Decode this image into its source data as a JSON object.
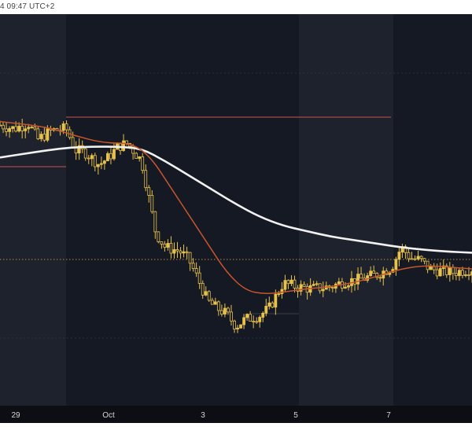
{
  "header": {
    "timestamp": "4 09:47 UTC+2"
  },
  "colors": {
    "background": "#151923",
    "band_light": "#1e222d",
    "candle_up": "#e8c24a",
    "candle_down": "#e8c24a",
    "ma_fast": "#c8552c",
    "ma_slow": "#f1f1f1",
    "level_line": "#a84848",
    "dashed_line": "#b8893a",
    "x_axis_bg": "#0c0e14",
    "x_axis_text": "#d6d6d6"
  },
  "chart_data": {
    "type": "candlestick",
    "xlabel": "",
    "ylabel": "",
    "x_ticks": [
      "29",
      "Oct",
      "3",
      "5",
      "7"
    ],
    "grid": false,
    "overlays": [
      "moving-average-fast",
      "moving-average-slow",
      "horizontal-levels",
      "dotted-price-line"
    ],
    "close_path": [
      [
        0,
        61
      ],
      [
        0.03,
        60
      ],
      [
        0.06,
        61.5
      ],
      [
        0.08,
        57
      ],
      [
        0.11,
        59.5
      ],
      [
        0.14,
        60
      ],
      [
        0.16,
        54
      ],
      [
        0.18,
        53.5
      ],
      [
        0.21,
        50
      ],
      [
        0.23,
        52
      ],
      [
        0.25,
        55
      ],
      [
        0.27,
        56
      ],
      [
        0.3,
        51
      ],
      [
        0.33,
        31
      ],
      [
        0.35,
        27
      ],
      [
        0.38,
        26
      ],
      [
        0.4,
        23.5
      ],
      [
        0.42,
        18
      ],
      [
        0.44,
        12
      ],
      [
        0.46,
        10
      ],
      [
        0.48,
        8.5
      ],
      [
        0.5,
        5
      ],
      [
        0.52,
        7
      ],
      [
        0.55,
        8
      ],
      [
        0.57,
        10
      ],
      [
        0.6,
        17
      ],
      [
        0.63,
        16
      ],
      [
        0.66,
        15.5
      ],
      [
        0.7,
        16
      ],
      [
        0.73,
        17.5
      ],
      [
        0.76,
        18
      ],
      [
        0.8,
        19.5
      ],
      [
        0.83,
        21.5
      ],
      [
        0.85,
        27
      ],
      [
        0.87,
        24
      ],
      [
        0.89,
        23.5
      ],
      [
        0.91,
        21
      ],
      [
        0.93,
        20.5
      ],
      [
        0.96,
        20
      ],
      [
        1,
        21
      ]
    ],
    "ma_fast_path": [
      [
        0,
        62
      ],
      [
        0.1,
        60.5
      ],
      [
        0.16,
        58
      ],
      [
        0.22,
        56
      ],
      [
        0.28,
        56
      ],
      [
        0.32,
        52
      ],
      [
        0.36,
        44
      ],
      [
        0.4,
        36
      ],
      [
        0.44,
        28
      ],
      [
        0.48,
        20
      ],
      [
        0.52,
        15
      ],
      [
        0.56,
        14
      ],
      [
        0.6,
        14.5
      ],
      [
        0.65,
        15.5
      ],
      [
        0.7,
        16
      ],
      [
        0.76,
        17.5
      ],
      [
        0.8,
        19
      ],
      [
        0.85,
        21
      ],
      [
        0.9,
        22
      ],
      [
        0.95,
        21.5
      ],
      [
        1,
        21
      ]
    ],
    "ma_slow_path": [
      [
        0,
        52
      ],
      [
        0.05,
        53
      ],
      [
        0.1,
        54
      ],
      [
        0.15,
        54.8
      ],
      [
        0.2,
        55
      ],
      [
        0.25,
        55
      ],
      [
        0.3,
        54.5
      ],
      [
        0.35,
        51
      ],
      [
        0.4,
        47
      ],
      [
        0.45,
        43
      ],
      [
        0.5,
        39
      ],
      [
        0.55,
        35.5
      ],
      [
        0.6,
        33
      ],
      [
        0.65,
        31.5
      ],
      [
        0.7,
        30
      ],
      [
        0.75,
        29
      ],
      [
        0.8,
        28
      ],
      [
        0.85,
        27
      ],
      [
        0.9,
        26.3
      ],
      [
        0.95,
        25.8
      ],
      [
        1,
        25.5
      ]
    ]
  }
}
